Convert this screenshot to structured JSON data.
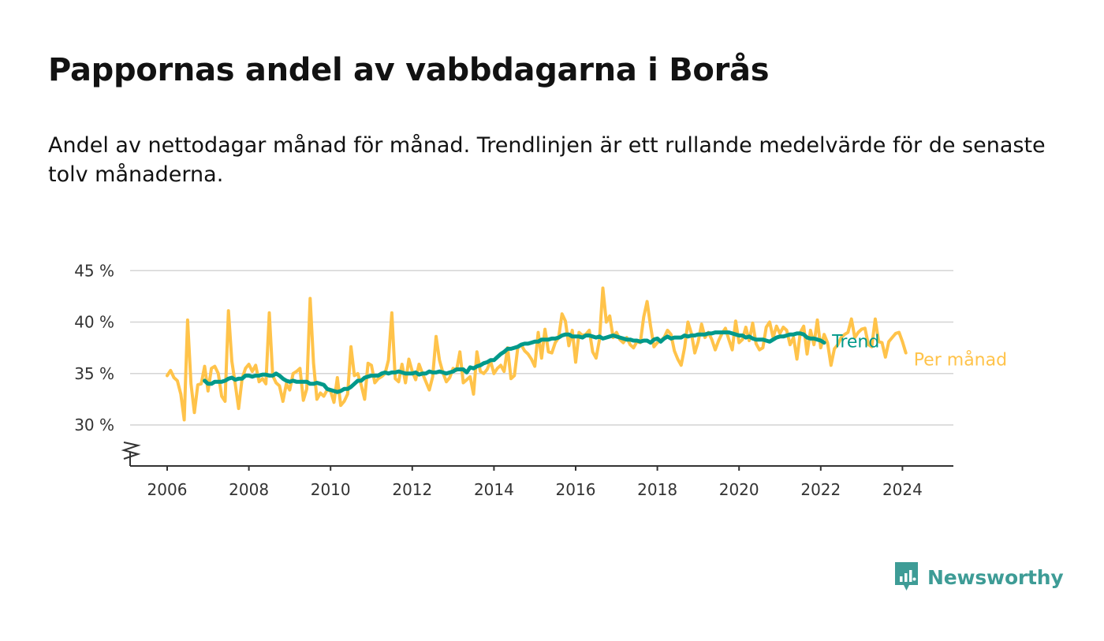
{
  "title": "Pappornas andel av vabbdagarna i Borås",
  "subtitle": "Andel av nettodagar månad för månad. Trendlinjen är ett rullande medelvärde för de senaste tolv månaderna.",
  "brand": {
    "name": "Newsworthy",
    "color": "#3e9c96"
  },
  "chart_data": {
    "type": "line",
    "title": "Pappornas andel av vabbdagarna i Borås",
    "subtitle": "Andel av nettodagar månad för månad. Trendlinjen är ett rullande medelvärde för de senaste tolv månaderna.",
    "xlabel": "",
    "ylabel": "",
    "x_start": "2006-01",
    "x_ticks": [
      "2006",
      "2008",
      "2010",
      "2012",
      "2014",
      "2016",
      "2018",
      "2020",
      "2022",
      "2024"
    ],
    "y_ticks": [
      "30 %",
      "35 %",
      "40 %",
      "45 %"
    ],
    "ylim": [
      26,
      45
    ],
    "grid": true,
    "legend": "direct labels at line ends",
    "series": [
      {
        "name": "Per månad",
        "color": "#ffc34a",
        "values": [
          34.8,
          35.3,
          34.6,
          34.3,
          33.0,
          30.5,
          40.2,
          34.0,
          31.2,
          33.9,
          34.0,
          35.7,
          33.3,
          35.5,
          35.7,
          35.0,
          32.8,
          32.3,
          41.1,
          36.2,
          34.0,
          31.6,
          34.5,
          35.5,
          35.9,
          35.2,
          35.8,
          34.2,
          34.5,
          34.0,
          40.9,
          34.8,
          34.1,
          33.8,
          32.3,
          34.0,
          33.4,
          35.0,
          35.2,
          35.5,
          32.4,
          33.5,
          42.3,
          36.0,
          32.5,
          33.1,
          32.8,
          33.4,
          33.3,
          32.2,
          34.6,
          31.9,
          32.3,
          33.0,
          37.6,
          34.8,
          35.0,
          33.9,
          32.5,
          36.0,
          35.8,
          34.1,
          34.5,
          34.7,
          35.0,
          36.3,
          40.9,
          34.5,
          34.2,
          35.9,
          34.1,
          36.4,
          35.2,
          34.4,
          35.9,
          35.0,
          34.2,
          33.4,
          34.7,
          38.6,
          36.3,
          35.1,
          34.2,
          34.6,
          35.5,
          35.3,
          37.1,
          34.1,
          34.4,
          34.7,
          33.0,
          37.1,
          35.2,
          35.0,
          35.4,
          36.2,
          35.0,
          35.5,
          35.8,
          35.2,
          37.5,
          34.5,
          34.8,
          37.5,
          37.8,
          37.2,
          36.9,
          36.4,
          35.7,
          39.0,
          36.5,
          39.3,
          37.1,
          37.0,
          38.0,
          38.5,
          40.8,
          40.1,
          37.7,
          39.2,
          36.1,
          39.0,
          38.7,
          38.8,
          39.2,
          37.1,
          36.5,
          38.3,
          43.3,
          40.0,
          40.6,
          38.5,
          39.0,
          38.3,
          38.0,
          38.5,
          37.8,
          37.5,
          38.1,
          38.0,
          40.5,
          42.0,
          39.6,
          37.6,
          38.0,
          38.2,
          38.5,
          39.2,
          38.8,
          37.2,
          36.4,
          35.8,
          37.5,
          40.0,
          38.9,
          37.0,
          38.1,
          39.8,
          38.5,
          39.0,
          38.3,
          37.3,
          38.2,
          38.9,
          39.4,
          38.3,
          37.3,
          40.1,
          38.0,
          38.3,
          39.5,
          38.2,
          39.9,
          37.9,
          37.3,
          37.5,
          39.5,
          40.0,
          38.5,
          39.6,
          38.9,
          39.5,
          39.2,
          37.8,
          38.5,
          36.4,
          39.0,
          39.6,
          36.9,
          39.2,
          37.8,
          40.2,
          37.5,
          38.8,
          38.0,
          35.8,
          37.4,
          37.8,
          38.5,
          38.8,
          39.0,
          40.3,
          38.5,
          39.0,
          39.3,
          39.4,
          37.8,
          37.6,
          40.3,
          38.1,
          38.0,
          36.6,
          38.1,
          38.5,
          38.9,
          39.0,
          38.1,
          37.0
        ]
      },
      {
        "name": "Trend",
        "color": "#00998a",
        "start_index": 11,
        "values": [
          34.3,
          34.0,
          34.0,
          34.2,
          34.2,
          34.2,
          34.3,
          34.5,
          34.6,
          34.4,
          34.5,
          34.5,
          34.8,
          34.8,
          34.7,
          34.8,
          34.8,
          34.9,
          34.9,
          34.8,
          34.8,
          35.0,
          34.8,
          34.5,
          34.3,
          34.2,
          34.3,
          34.2,
          34.2,
          34.2,
          34.2,
          34.0,
          34.0,
          34.1,
          34.0,
          33.9,
          33.5,
          33.4,
          33.3,
          33.2,
          33.3,
          33.5,
          33.5,
          33.7,
          34.0,
          34.3,
          34.3,
          34.6,
          34.7,
          34.8,
          34.8,
          34.8,
          35.0,
          35.1,
          35.0,
          35.1,
          35.1,
          35.2,
          35.1,
          35.0,
          35.0,
          35.0,
          35.1,
          34.9,
          35.0,
          35.0,
          35.2,
          35.1,
          35.1,
          35.2,
          35.1,
          35.0,
          35.1,
          35.2,
          35.4,
          35.4,
          35.4,
          35.1,
          35.6,
          35.5,
          35.7,
          35.8,
          36.0,
          36.1,
          36.3,
          36.3,
          36.6,
          36.9,
          37.1,
          37.4,
          37.4,
          37.5,
          37.6,
          37.8,
          37.9,
          37.9,
          38.0,
          38.1,
          38.1,
          38.3,
          38.3,
          38.3,
          38.4,
          38.4,
          38.5,
          38.7,
          38.8,
          38.8,
          38.6,
          38.6,
          38.6,
          38.5,
          38.7,
          38.7,
          38.6,
          38.5,
          38.6,
          38.4,
          38.5,
          38.6,
          38.7,
          38.6,
          38.5,
          38.4,
          38.3,
          38.3,
          38.2,
          38.2,
          38.1,
          38.2,
          38.2,
          38.0,
          38.3,
          38.4,
          38.1,
          38.4,
          38.6,
          38.4,
          38.5,
          38.5,
          38.5,
          38.7,
          38.6,
          38.7,
          38.7,
          38.8,
          38.8,
          38.8,
          38.9,
          38.9,
          39.0,
          39.0,
          39.0,
          39.0,
          39.0,
          38.9,
          38.8,
          38.7,
          38.7,
          38.5,
          38.6,
          38.4,
          38.3,
          38.3,
          38.3,
          38.2,
          38.1,
          38.3,
          38.5,
          38.6,
          38.6,
          38.7,
          38.8,
          38.8,
          38.9,
          38.9,
          38.8,
          38.5,
          38.4,
          38.4,
          38.3,
          38.2,
          38.0
        ]
      }
    ]
  }
}
